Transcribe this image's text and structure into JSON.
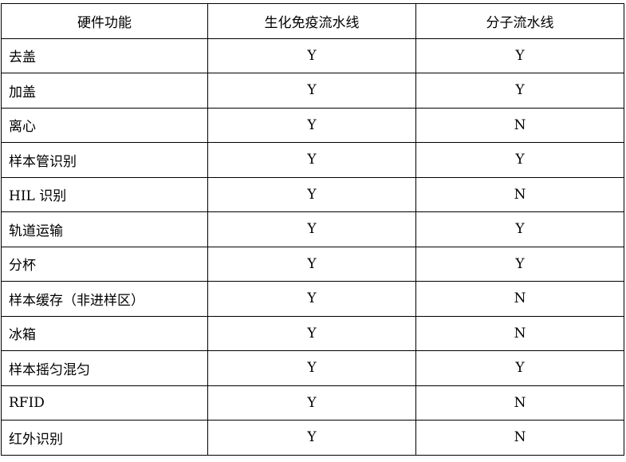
{
  "table": {
    "headers": [
      "硬件功能",
      "生化免疫流水线",
      "分子流水线"
    ],
    "rows": [
      [
        "去盖",
        "Y",
        "Y"
      ],
      [
        "加盖",
        "Y",
        "Y"
      ],
      [
        "离心",
        "Y",
        "N"
      ],
      [
        "样本管识别",
        "Y",
        "Y"
      ],
      [
        "HIL 识别",
        "Y",
        "N"
      ],
      [
        "轨道运输",
        "Y",
        "Y"
      ],
      [
        "分杯",
        "Y",
        "Y"
      ],
      [
        "样本缓存（非进样区）",
        "Y",
        "N"
      ],
      [
        "冰箱",
        "Y",
        "N"
      ],
      [
        "样本摇匀混匀",
        "Y",
        "Y"
      ],
      [
        "RFID",
        "Y",
        "N"
      ],
      [
        "红外识别",
        "Y",
        "N"
      ]
    ]
  }
}
